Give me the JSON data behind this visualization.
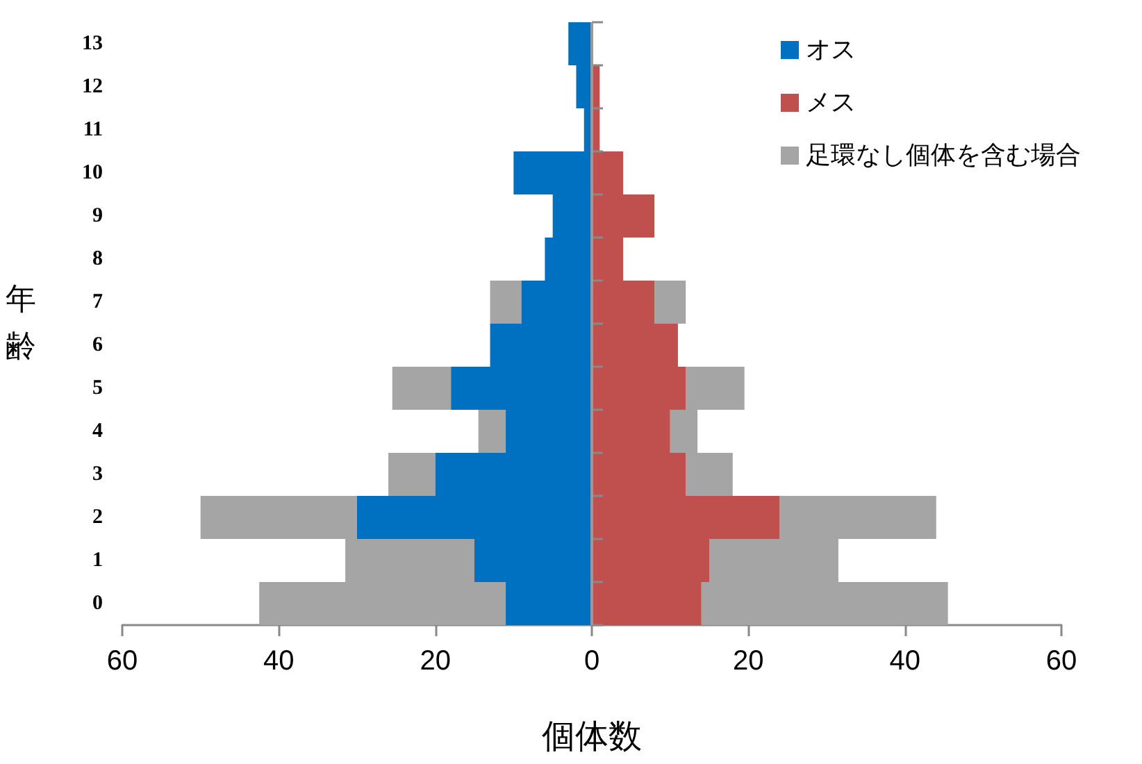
{
  "chart_data": {
    "type": "bar",
    "orientation": "horizontal",
    "xlabel": "個体数",
    "ylabel": "年齢",
    "categories": [
      "13",
      "12",
      "11",
      "10",
      "9",
      "8",
      "7",
      "6",
      "5",
      "4",
      "3",
      "2",
      "1",
      "0"
    ],
    "series": [
      {
        "name": "オス",
        "color": "#0070c0",
        "values": [
          -3,
          -2,
          -1,
          -10,
          -5,
          -6,
          -9,
          -13,
          -18,
          -11,
          -20,
          -30,
          -15,
          -11
        ]
      },
      {
        "name": "メス",
        "color": "#c0504d",
        "values": [
          0,
          1,
          1,
          4,
          8,
          4,
          8,
          11,
          12,
          10,
          12,
          24,
          15,
          14
        ]
      },
      {
        "name": "足環なし個体を含む場合",
        "color": "#a5a5a5",
        "values": [
          null,
          null,
          null,
          null,
          null,
          null,
          4,
          null,
          7.5,
          3.5,
          6,
          20,
          16.5,
          31.5
        ]
      },
      {
        "color": "#a5a5a5",
        "values": [
          null,
          null,
          null,
          null,
          null,
          null,
          -4,
          null,
          -7.5,
          -3.5,
          -6,
          -20,
          -16.5,
          -31.5
        ]
      }
    ],
    "stacked": true,
    "ref_lines": [
      {
        "axis": "x",
        "value": 0,
        "color": "#999999"
      }
    ],
    "xlim": [
      -60,
      60
    ],
    "xticks": [
      {
        "value": -60,
        "label": "60"
      },
      {
        "value": -40,
        "label": "40"
      },
      {
        "value": -20,
        "label": "20"
      },
      0,
      20,
      40,
      60
    ],
    "grid": false,
    "legend": "top right"
  }
}
